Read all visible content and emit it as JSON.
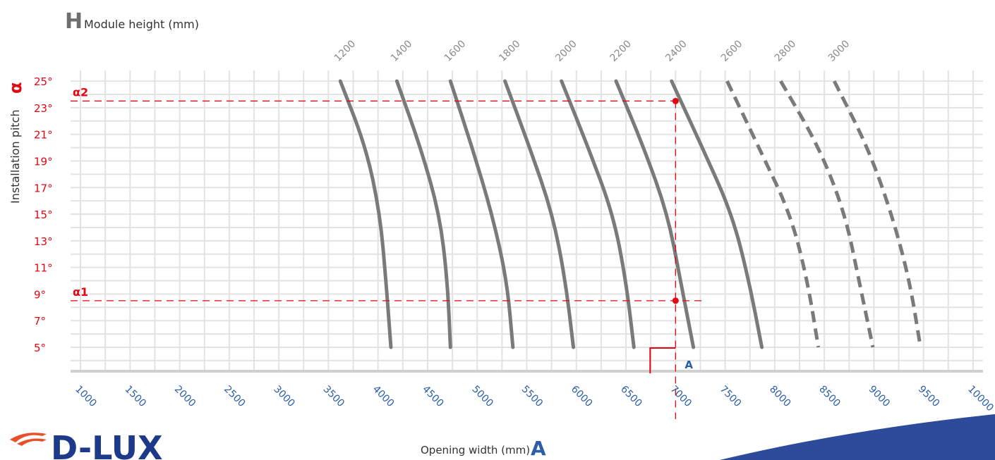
{
  "logo": {
    "text": "D-LUX"
  },
  "chart_data": {
    "type": "line",
    "title_letter": "H",
    "title": "Module height (mm)",
    "xlabel": "Opening width (mm)",
    "xlabel_letter": "A",
    "ylabel": "Installation pitch",
    "ylabel_letter": "α",
    "x_ticks": [
      1000,
      1500,
      2000,
      2500,
      3000,
      3500,
      4000,
      4500,
      5000,
      5500,
      6000,
      6500,
      7000,
      7500,
      8000,
      8500,
      9000,
      9500,
      10000
    ],
    "y_ticks": [
      "5°",
      "7°",
      "9°",
      "11°",
      "13°",
      "15°",
      "17°",
      "19°",
      "21°",
      "23°",
      "25°"
    ],
    "xlim": [
      900,
      10100
    ],
    "ylim": [
      3.2,
      25.8
    ],
    "grid": true,
    "colors": {
      "series": "#7a7a7a",
      "marker": "#e30613",
      "axis_text": "#2b5ea8",
      "tick_y": "#e30613",
      "grid": "#e3e3e3",
      "brand": "#1d3a8a"
    },
    "series": [
      {
        "name": "1200",
        "dashed": false,
        "points": [
          [
            3620,
            25
          ],
          [
            3880,
            20
          ],
          [
            4020,
            15
          ],
          [
            4080,
            10
          ],
          [
            4130,
            5
          ]
        ]
      },
      {
        "name": "1400",
        "dashed": false,
        "points": [
          [
            4190,
            25
          ],
          [
            4430,
            20
          ],
          [
            4620,
            15
          ],
          [
            4700,
            10
          ],
          [
            4730,
            5
          ]
        ]
      },
      {
        "name": "1600",
        "dashed": false,
        "points": [
          [
            4730,
            25
          ],
          [
            4950,
            20
          ],
          [
            5150,
            15
          ],
          [
            5300,
            10
          ],
          [
            5360,
            5
          ]
        ]
      },
      {
        "name": "1800",
        "dashed": false,
        "points": [
          [
            5280,
            25
          ],
          [
            5530,
            20
          ],
          [
            5760,
            15
          ],
          [
            5890,
            10
          ],
          [
            5970,
            5
          ]
        ]
      },
      {
        "name": "2000",
        "dashed": false,
        "points": [
          [
            5850,
            25
          ],
          [
            6120,
            20
          ],
          [
            6370,
            15
          ],
          [
            6500,
            10
          ],
          [
            6580,
            5
          ]
        ]
      },
      {
        "name": "2200",
        "dashed": false,
        "points": [
          [
            6400,
            25
          ],
          [
            6680,
            20
          ],
          [
            6920,
            15
          ],
          [
            7050,
            10
          ],
          [
            7180,
            5
          ]
        ]
      },
      {
        "name": "2400",
        "dashed": false,
        "points": [
          [
            6960,
            25
          ],
          [
            7270,
            20
          ],
          [
            7570,
            15
          ],
          [
            7740,
            10
          ],
          [
            7870,
            5
          ]
        ]
      },
      {
        "name": "2600",
        "dashed": true,
        "points": [
          [
            7520,
            25
          ],
          [
            7840,
            20
          ],
          [
            8160,
            15
          ],
          [
            8330,
            10
          ],
          [
            8440,
            5
          ]
        ]
      },
      {
        "name": "2800",
        "dashed": true,
        "points": [
          [
            8060,
            25
          ],
          [
            8450,
            20
          ],
          [
            8710,
            15
          ],
          [
            8850,
            10
          ],
          [
            8990,
            5
          ]
        ]
      },
      {
        "name": "3000",
        "dashed": true,
        "points": [
          [
            8600,
            25
          ],
          [
            8940,
            20
          ],
          [
            9180,
            15
          ],
          [
            9360,
            10
          ],
          [
            9470,
            5
          ]
        ]
      }
    ],
    "annotations": {
      "a1": {
        "label": "α1",
        "y": 8.5
      },
      "a2": {
        "label": "α2",
        "y": 23.5
      },
      "a_marker": {
        "label": "A",
        "x": 7000
      },
      "points": [
        [
          7000,
          23.5
        ],
        [
          7000,
          8.5
        ]
      ]
    }
  }
}
